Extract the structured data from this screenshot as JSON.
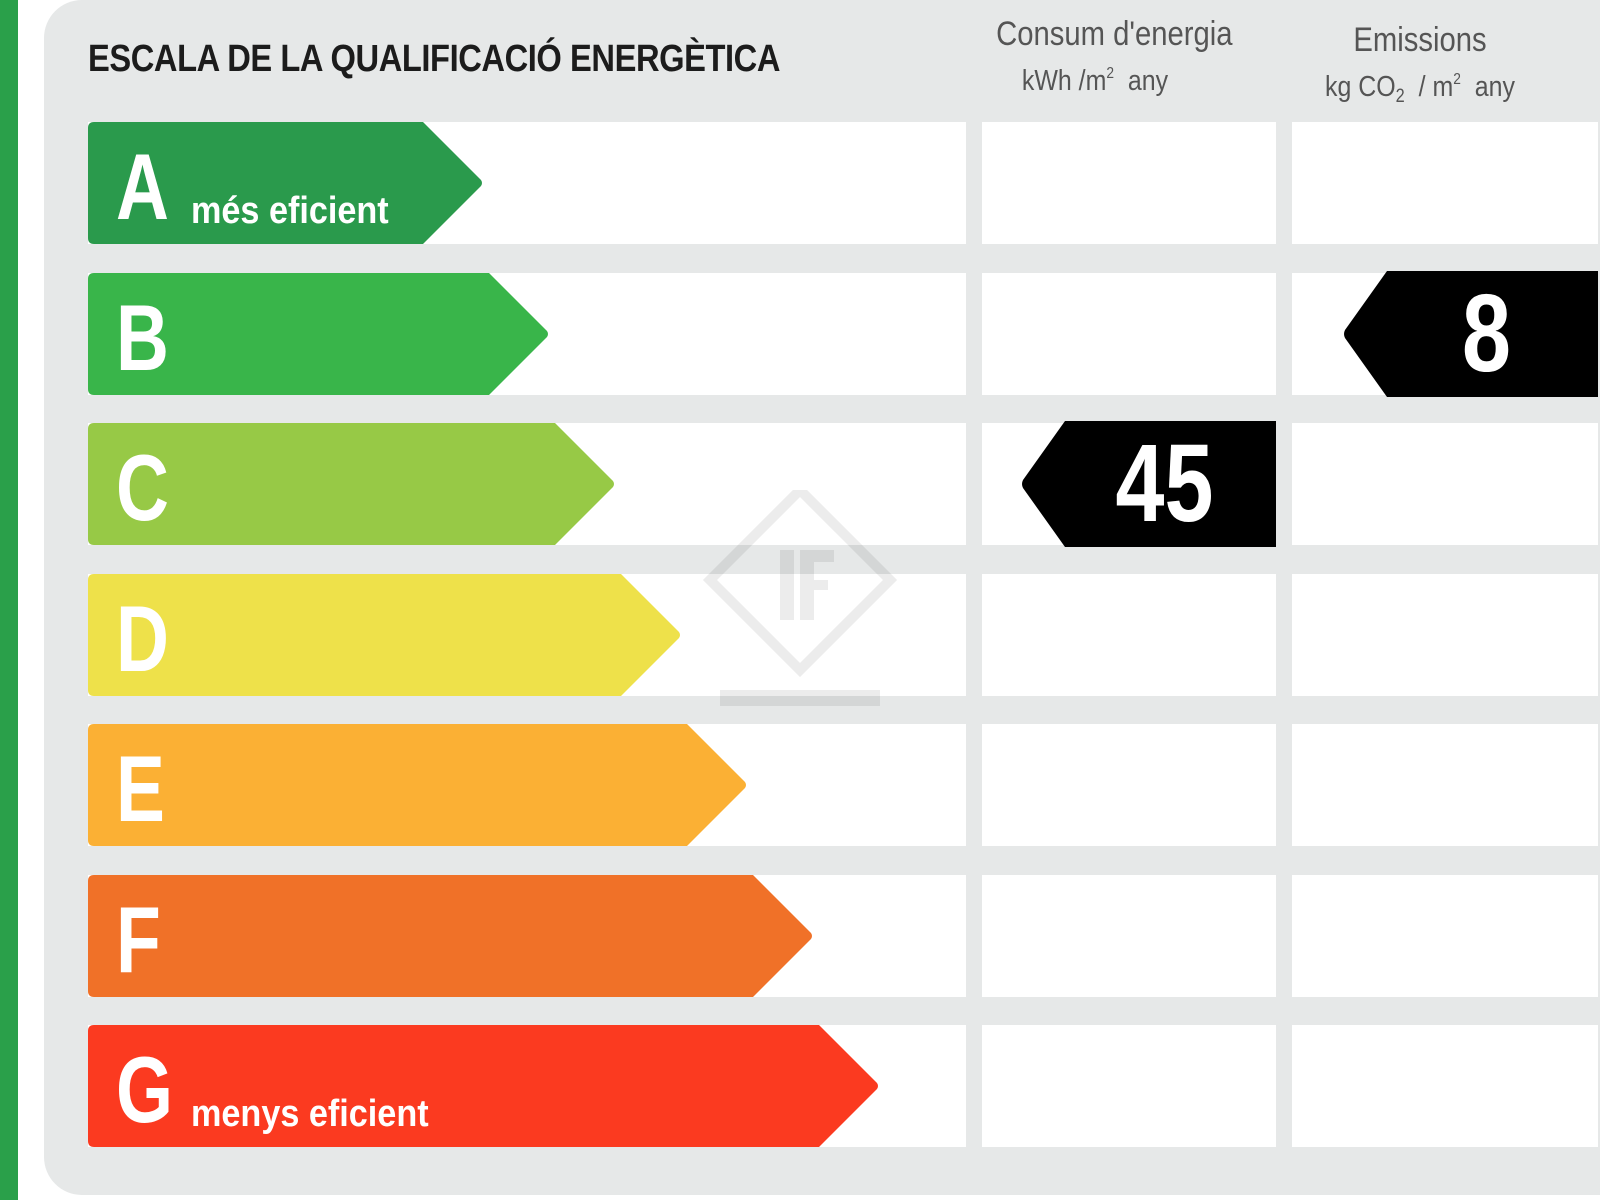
{
  "page": {
    "title": "ESCALA DE LA QUALIFICACIÓ ENERGÈTICA"
  },
  "columns": {
    "consumption": {
      "title": "Consum d'energia",
      "unit_pre": "kWh /m",
      "unit_sup": "2",
      "unit_post": "any"
    },
    "emissions": {
      "title": "Emissions",
      "unit_pre": "kg CO",
      "unit_sub": "2",
      "unit_mid": "/ m",
      "unit_sup": "2",
      "unit_post": "any"
    }
  },
  "grades": [
    {
      "letter": "A",
      "label": "més eficient",
      "color": "#2a9a4c"
    },
    {
      "letter": "B",
      "label": "",
      "color": "#39b54a"
    },
    {
      "letter": "C",
      "label": "",
      "color": "#97c946"
    },
    {
      "letter": "D",
      "label": "",
      "color": "#eee14a"
    },
    {
      "letter": "E",
      "label": "",
      "color": "#fbb034"
    },
    {
      "letter": "F",
      "label": "",
      "color": "#f07128"
    },
    {
      "letter": "G",
      "label": "menys eficient",
      "color": "#fb3a20"
    }
  ],
  "indicators": {
    "consumption": {
      "value": "45",
      "grade": "C"
    },
    "emissions": {
      "value": "8",
      "grade": "B"
    }
  },
  "colors": {
    "stripe": "#2aa04a",
    "panel": "#e6e8e8",
    "indicator": "#000000"
  }
}
